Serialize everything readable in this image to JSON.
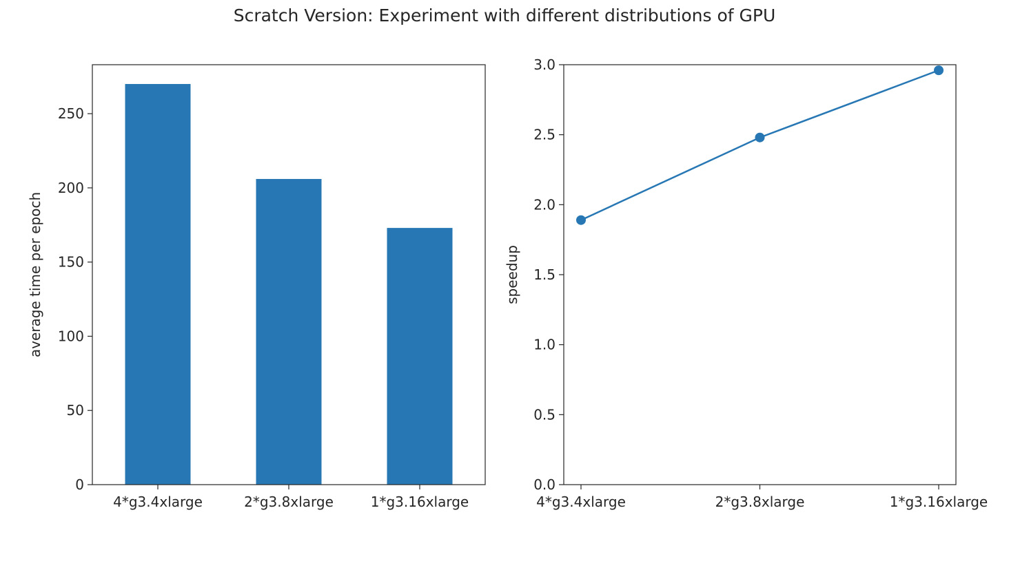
{
  "figure_title": "Scratch Version: Experiment with different distributions of GPU",
  "colors": {
    "bar": "#2677b4",
    "line": "#2677b4",
    "axis": "#262626"
  },
  "chart_data": [
    {
      "type": "bar",
      "title": "",
      "categories": [
        "4*g3.4xlarge",
        "2*g3.8xlarge",
        "1*g3.16xlarge"
      ],
      "values": [
        270,
        206,
        173
      ],
      "xlabel": "",
      "ylabel": "average time per epoch",
      "ylim": [
        0,
        283
      ],
      "yticks": [
        0,
        50,
        100,
        150,
        200,
        250
      ],
      "grid": false
    },
    {
      "type": "line",
      "title": "",
      "categories": [
        "4*g3.4xlarge",
        "2*g3.8xlarge",
        "1*g3.16xlarge"
      ],
      "values": [
        1.89,
        2.48,
        2.96
      ],
      "markers": true,
      "xlabel": "",
      "ylabel": "speedup",
      "ylim": [
        0.0,
        3.0
      ],
      "yticks": [
        "0.0",
        "0.5",
        "1.0",
        "1.5",
        "2.0",
        "2.5",
        "3.0"
      ],
      "grid": false
    }
  ]
}
